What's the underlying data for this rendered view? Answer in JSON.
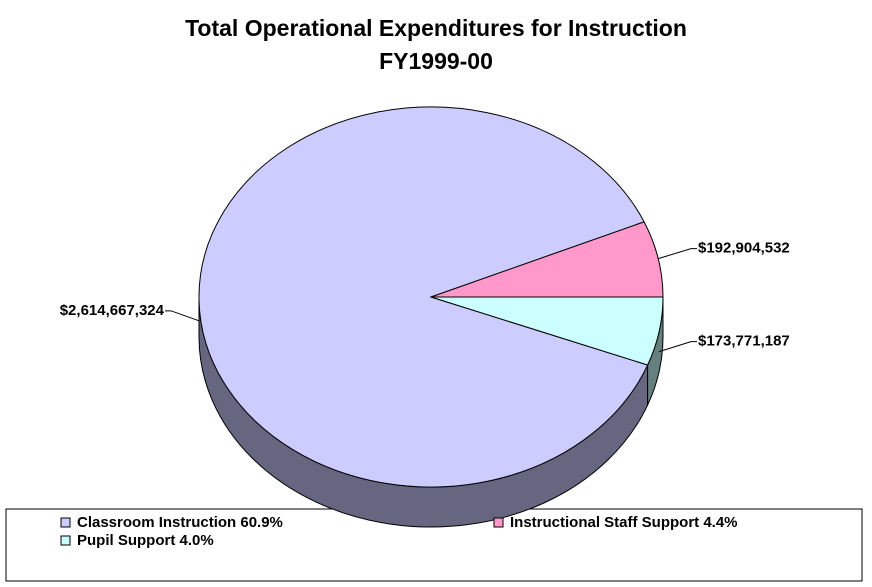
{
  "chart_data": {
    "type": "pie",
    "title": "Total Operational Expenditures for Instruction",
    "subtitle": "FY1999-00",
    "categories": [
      "Classroom Instruction 60.9%",
      "Instructional Staff Support 4.4%",
      "Pupil Support 4.0%"
    ],
    "values": [
      2614667324,
      192904532,
      173771187
    ],
    "value_labels": [
      "$2,614,667,324",
      "$192,904,532",
      "$173,771,187"
    ],
    "colors": [
      "#ccccff",
      "#ff99cc",
      "#ccffff"
    ],
    "legend": "bottom"
  }
}
